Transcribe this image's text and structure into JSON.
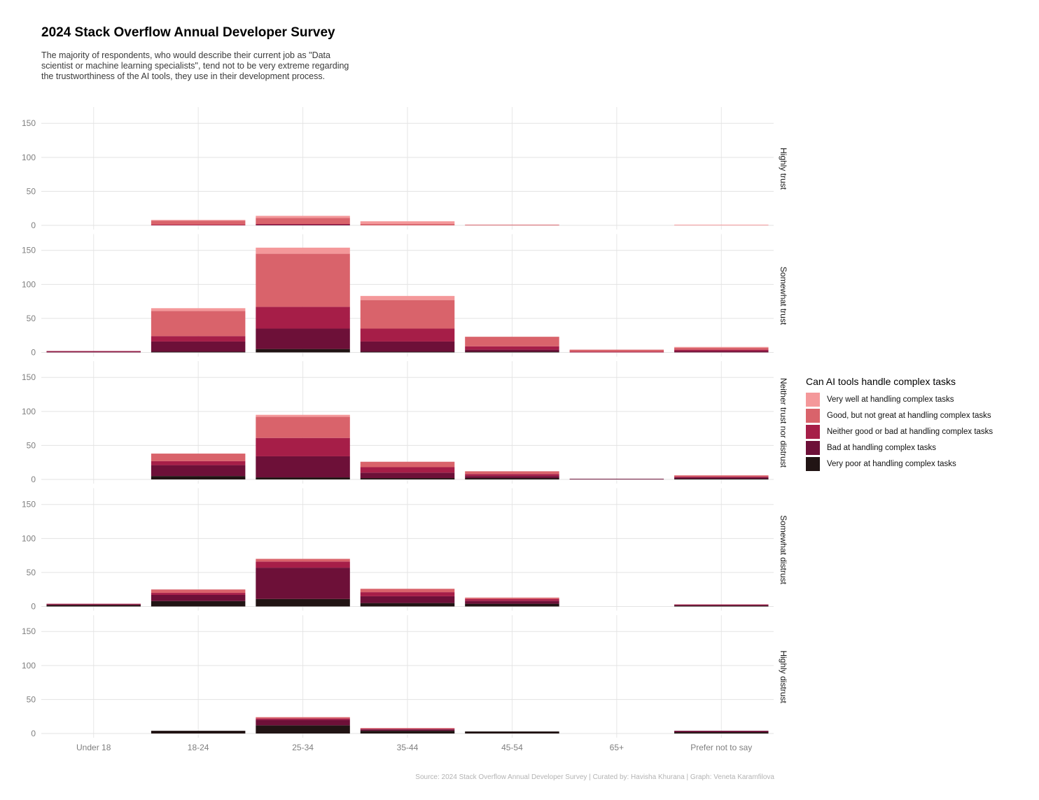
{
  "title": "2024 Stack Overflow Annual Developer Survey",
  "subtitle": "The majority of respondents, who would describe their current job as \"Data scientist or machine learning specialists\", tend not to be very extreme regarding the trustworthiness of the AI tools, they use in their development process.",
  "caption": "Source: 2024 Stack Overflow Annual Developer Survey | Curated by: Havisha Khurana | Graph: Veneta Karamfilova",
  "legend": {
    "title": "Can AI tools handle complex tasks",
    "items": [
      {
        "label": "Very well at handling complex tasks",
        "color": "#F4989A"
      },
      {
        "label": "Good, but not great at handling complex tasks",
        "color": "#D9636B"
      },
      {
        "label": "Neither good or bad at handling complex tasks",
        "color": "#A61E48"
      },
      {
        "label": "Bad at handling complex tasks",
        "color": "#6D1038"
      },
      {
        "label": "Very poor at handling complex tasks",
        "color": "#211414"
      }
    ]
  },
  "chart_data": {
    "type": "bar",
    "stacked": true,
    "grid": true,
    "legend_position": "right",
    "categories": [
      "Under 18",
      "18-24",
      "25-34",
      "35-44",
      "45-54",
      "65+",
      "Prefer not to say"
    ],
    "ylim": [
      0,
      160
    ],
    "yticks": [
      0,
      50,
      100,
      150
    ],
    "stack_order": [
      "Very poor at handling complex tasks",
      "Bad at handling complex tasks",
      "Neither good or bad at handling complex tasks",
      "Good, but not great at handling complex tasks",
      "Very well at handling complex tasks"
    ],
    "facets": [
      {
        "label": "Highly trust",
        "series": [
          {
            "name": "Very poor at handling complex tasks",
            "values": [
              0,
              0,
              0,
              0,
              0,
              0,
              0
            ]
          },
          {
            "name": "Bad at handling complex tasks",
            "values": [
              0,
              0,
              1,
              0,
              0,
              0,
              0
            ]
          },
          {
            "name": "Neither good or bad at handling complex tasks",
            "values": [
              0,
              1,
              1,
              0,
              0,
              0,
              0
            ]
          },
          {
            "name": "Good, but not great at handling complex tasks",
            "values": [
              0,
              6,
              9,
              2,
              1,
              0,
              0
            ]
          },
          {
            "name": "Very well at handling complex tasks",
            "values": [
              0,
              1,
              3,
              4,
              0,
              0,
              1
            ]
          }
        ]
      },
      {
        "label": "Somewhat trust",
        "series": [
          {
            "name": "Very poor at handling complex tasks",
            "values": [
              0,
              1,
              5,
              1,
              1,
              0,
              0
            ]
          },
          {
            "name": "Bad at handling complex tasks",
            "values": [
              1,
              15,
              30,
              15,
              3,
              0,
              2
            ]
          },
          {
            "name": "Neither good or bad at handling complex tasks",
            "values": [
              1,
              8,
              32,
              19,
              5,
              1,
              2
            ]
          },
          {
            "name": "Good, but not great at handling complex tasks",
            "values": [
              0,
              37,
              78,
              42,
              14,
              3,
              3
            ]
          },
          {
            "name": "Very well at handling complex tasks",
            "values": [
              0,
              4,
              9,
              6,
              0,
              0,
              1
            ]
          }
        ]
      },
      {
        "label": "Neither trust nor distrust",
        "series": [
          {
            "name": "Very poor at handling complex tasks",
            "values": [
              0,
              5,
              3,
              2,
              2,
              0,
              1
            ]
          },
          {
            "name": "Bad at handling complex tasks",
            "values": [
              0,
              16,
              31,
              8,
              3,
              1,
              2
            ]
          },
          {
            "name": "Neither good or bad at handling complex tasks",
            "values": [
              0,
              6,
              27,
              8,
              3,
              0,
              1
            ]
          },
          {
            "name": "Good, but not great at handling complex tasks",
            "values": [
              0,
              11,
              31,
              8,
              4,
              0,
              2
            ]
          },
          {
            "name": "Very well at handling complex tasks",
            "values": [
              0,
              0,
              3,
              0,
              0,
              0,
              0
            ]
          }
        ]
      },
      {
        "label": "Somewhat distrust",
        "series": [
          {
            "name": "Very poor at handling complex tasks",
            "values": [
              2,
              8,
              11,
              5,
              4,
              0,
              1
            ]
          },
          {
            "name": "Bad at handling complex tasks",
            "values": [
              1,
              9,
              46,
              10,
              4,
              0,
              1
            ]
          },
          {
            "name": "Neither good or bad at handling complex tasks",
            "values": [
              1,
              3,
              9,
              6,
              3,
              0,
              1
            ]
          },
          {
            "name": "Good, but not great at handling complex tasks",
            "values": [
              0,
              5,
              4,
              5,
              2,
              0,
              0
            ]
          },
          {
            "name": "Very well at handling complex tasks",
            "values": [
              0,
              0,
              0,
              0,
              0,
              0,
              0
            ]
          }
        ]
      },
      {
        "label": "Highly distrust",
        "series": [
          {
            "name": "Very poor at handling complex tasks",
            "values": [
              0,
              4,
              12,
              4,
              3,
              0,
              2
            ]
          },
          {
            "name": "Bad at handling complex tasks",
            "values": [
              0,
              0,
              8,
              2,
              0,
              0,
              2
            ]
          },
          {
            "name": "Neither good or bad at handling complex tasks",
            "values": [
              0,
              0,
              2,
              1,
              0,
              0,
              0
            ]
          },
          {
            "name": "Good, but not great at handling complex tasks",
            "values": [
              0,
              0,
              2,
              1,
              0,
              0,
              0
            ]
          },
          {
            "name": "Very well at handling complex tasks",
            "values": [
              0,
              0,
              0,
              0,
              0,
              0,
              0
            ]
          }
        ]
      }
    ]
  }
}
